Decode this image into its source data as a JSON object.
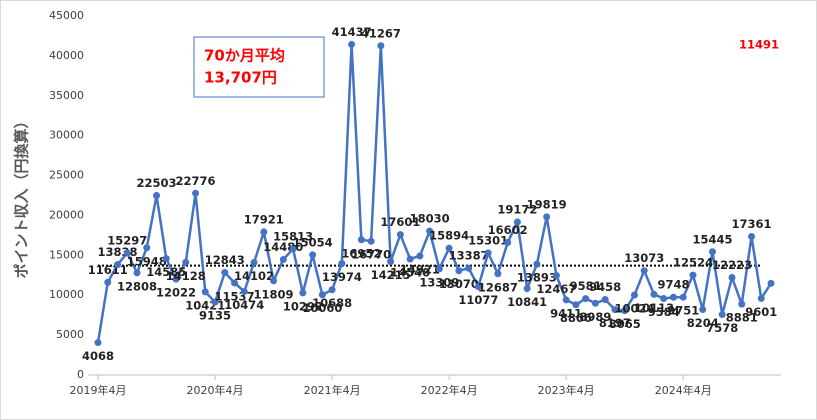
{
  "chart_data": {
    "type": "line",
    "y_axis_label": "ポイント収入（円換算）",
    "categories": [
      "2019年4月",
      null,
      null,
      null,
      null,
      null,
      null,
      null,
      null,
      null,
      null,
      null,
      "2020年4月",
      null,
      null,
      null,
      null,
      null,
      null,
      null,
      null,
      null,
      null,
      null,
      "2021年4月",
      null,
      null,
      null,
      null,
      null,
      null,
      null,
      null,
      null,
      null,
      null,
      "2022年4月",
      null,
      null,
      null,
      null,
      null,
      null,
      null,
      null,
      null,
      null,
      null,
      "2023年4月",
      null,
      null,
      null,
      null,
      null,
      null,
      null,
      null,
      null,
      null,
      null,
      "2024年4月",
      null,
      null,
      null,
      null,
      null,
      null,
      null,
      null,
      null
    ],
    "series": [
      {
        "color": "#4472c4",
        "values": [
          4068,
          11611,
          13838,
          15297,
          12808,
          15948,
          22503,
          14585,
          12022,
          14128,
          22776,
          10421,
          9135,
          12843,
          11537,
          10474,
          14102,
          17921,
          11809,
          14480,
          15813,
          10292,
          15054,
          10060,
          10688,
          13974,
          41437,
          16952,
          16770,
          41267,
          14215,
          17601,
          14540,
          14921,
          18030,
          13309,
          15894,
          13070,
          13387,
          11077,
          15301,
          12687,
          16602,
          19172,
          10841,
          13893,
          19819,
          12467,
          9411,
          8806,
          9581,
          8989,
          9458,
          8197,
          8065,
          10024,
          13073,
          10113,
          9584,
          9748,
          9751,
          12524,
          8204,
          15445,
          7578,
          12223,
          8881,
          17361,
          9601,
          11491
        ]
      }
    ],
    "highlight_color": "#ff0000",
    "average": 13707,
    "annotation": [
      "70か月平均",
      "13,707円"
    ],
    "annotation_color": "#ff0000",
    "ylim": [
      0,
      45000
    ],
    "yticks": [
      0,
      5000,
      10000,
      15000,
      20000,
      25000,
      30000,
      35000,
      40000,
      45000
    ]
  }
}
